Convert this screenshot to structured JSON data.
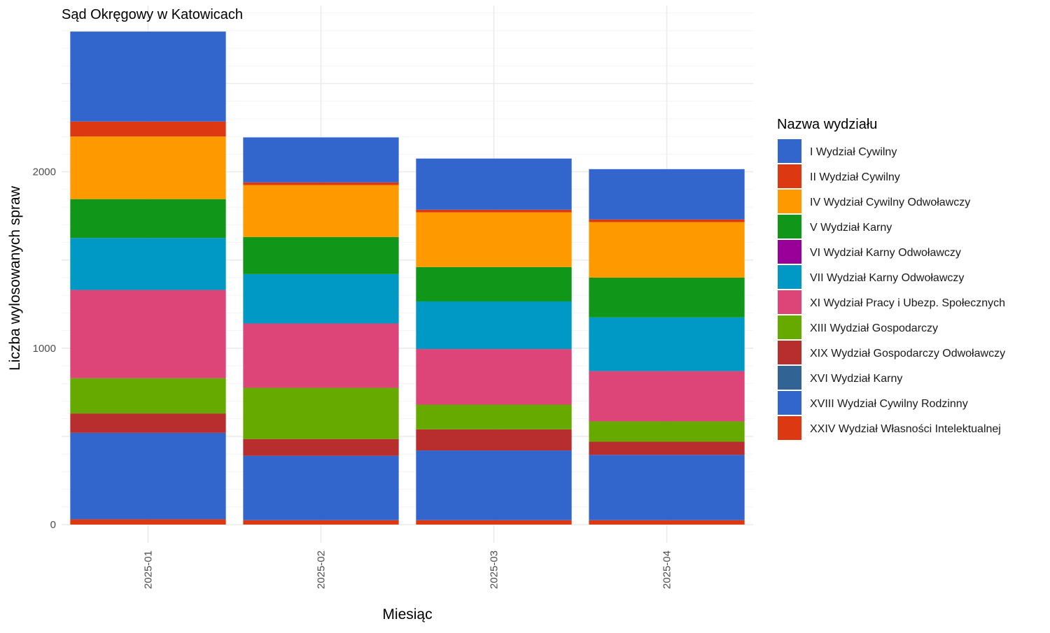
{
  "chart_data": {
    "type": "bar",
    "stacked": true,
    "title": "Sąd Okręgowy w Katowicach",
    "xlabel": "Miesiąc",
    "ylabel": "Liczba wylosowanych spraw",
    "ylim": [
      0,
      2900
    ],
    "y_ticks": [
      0,
      1000,
      2000
    ],
    "y_tick_labels": [
      "0",
      "1000",
      "2000"
    ],
    "grid": true,
    "legend_position": "right",
    "legend_title": "Nazwa wydziału",
    "categories": [
      "2025-01",
      "2025-02",
      "2025-03",
      "2025-04"
    ],
    "series": [
      {
        "name": "I Wydział Cywilny",
        "color": "#3366cc",
        "values": [
          510,
          255,
          290,
          285
        ]
      },
      {
        "name": "II Wydział Cywilny",
        "color": "#dc3912",
        "values": [
          85,
          15,
          15,
          15
        ]
      },
      {
        "name": "IV Wydział Cywilny Odwoławczy",
        "color": "#ff9900",
        "values": [
          355,
          295,
          310,
          315
        ]
      },
      {
        "name": "V Wydział Karny",
        "color": "#109618",
        "values": [
          220,
          210,
          195,
          225
        ]
      },
      {
        "name": "VI Wydział Karny Odwoławczy",
        "color": "#990099",
        "values": [
          0,
          0,
          0,
          0
        ]
      },
      {
        "name": "VII Wydział Karny Odwoławczy",
        "color": "#0099c6",
        "values": [
          295,
          280,
          270,
          305
        ]
      },
      {
        "name": "XI Wydział Pracy i Ubezp. Społecznych",
        "color": "#dd4477",
        "values": [
          500,
          365,
          315,
          285
        ]
      },
      {
        "name": "XIII Wydział Gospodarczy",
        "color": "#66aa00",
        "values": [
          200,
          290,
          140,
          115
        ]
      },
      {
        "name": "XIX Wydział Gospodarczy Odwoławczy",
        "color": "#b82e2e",
        "values": [
          110,
          95,
          120,
          75
        ]
      },
      {
        "name": "XVI Wydział Karny",
        "color": "#316395",
        "values": [
          0,
          0,
          0,
          0
        ]
      },
      {
        "name": "XVIII Wydział Cywilny Rodzinny",
        "color": "#3366cc",
        "values": [
          490,
          365,
          395,
          370
        ]
      },
      {
        "name": "XXIV Wydział Własności Intelektualnej",
        "color": "#dc3912",
        "values": [
          30,
          25,
          25,
          25
        ]
      }
    ]
  }
}
